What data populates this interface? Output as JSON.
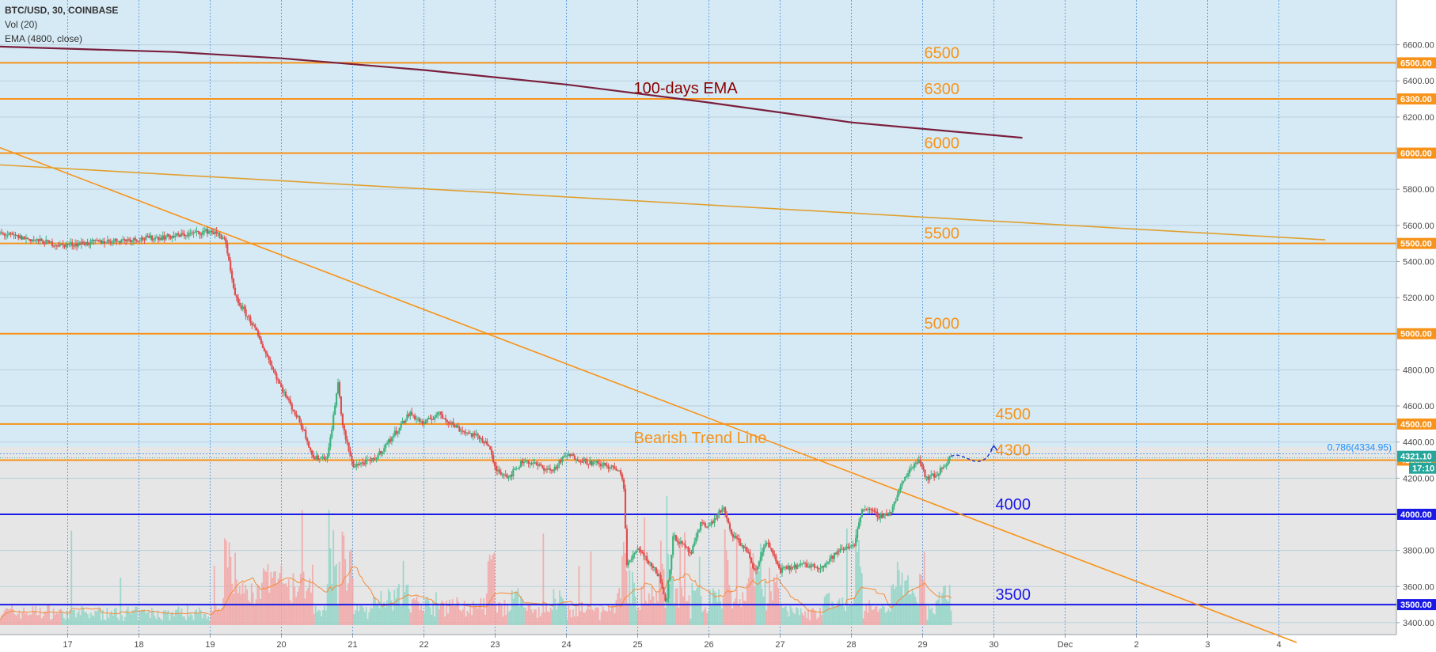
{
  "chart_data": {
    "type": "candlestick",
    "symbol_line": "BTC/USD, 30, COINBASE",
    "indicators": [
      "Vol (20)",
      "EMA (4800, close)"
    ],
    "x_ticks": [
      "17",
      "18",
      "19",
      "20",
      "21",
      "22",
      "23",
      "24",
      "25",
      "26",
      "27",
      "28",
      "29",
      "30",
      "Dec",
      "2",
      "3",
      "4"
    ],
    "y_ticks": [
      3400,
      3600,
      3800,
      4000,
      4200,
      4400,
      4600,
      4800,
      5000,
      5200,
      5400,
      5600,
      5800,
      6000,
      6200,
      6400,
      6600
    ],
    "y_tick_labels": [
      "3400.00",
      "3600.00",
      "3800.00",
      "4000.00",
      "4200.00",
      "4400.00",
      "4600.00",
      "4800.00",
      "5000.00",
      "5200.00",
      "5400.00",
      "5600.00",
      "5800.00",
      "6000.00",
      "6200.00",
      "6400.00",
      "6600.00"
    ],
    "ylim": [
      3290,
      6710
    ],
    "xlim": [
      16.05,
      35.65
    ],
    "levels": [
      {
        "value": 6500,
        "label": "6500",
        "tag": "6500.00",
        "color": "#f7931a",
        "label_day": 29.0
      },
      {
        "value": 6300,
        "label": "6300",
        "tag": "6300.00",
        "color": "#f7931a",
        "label_day": 29.0
      },
      {
        "value": 6000,
        "label": "6000",
        "tag": "6000.00",
        "color": "#f7931a",
        "label_day": 29.0
      },
      {
        "value": 5500,
        "label": "5500",
        "tag": "5500.00",
        "color": "#f7931a",
        "label_day": 29.0
      },
      {
        "value": 5000,
        "label": "5000",
        "tag": "5000.00",
        "color": "#f7931a",
        "label_day": 29.0
      },
      {
        "value": 4500,
        "label": "4500",
        "tag": "4500.00",
        "color": "#f7931a",
        "label_day": 30.0
      },
      {
        "value": 4300,
        "label": "4300",
        "tag": "4300.00",
        "color": "#f7931a",
        "label_day": 30.0
      },
      {
        "value": 4000,
        "label": "4000",
        "tag": "4000.00",
        "color": "#1a1ae6",
        "label_day": 30.0
      },
      {
        "value": 3500,
        "label": "3500",
        "tag": "3500.00",
        "color": "#1a1ae6",
        "label_day": 30.0
      }
    ],
    "last_price": {
      "value": 4321.1,
      "label": "4321.10",
      "countdown": "17:10",
      "color": "#26a69a"
    },
    "fib_line": {
      "value": 4334.95,
      "label": "0.786(4334.95)",
      "color": "#1e90ff"
    },
    "annotations": [
      {
        "text": "100-days EMA",
        "day": 26.0,
        "value": 6330,
        "color": "#8b0000"
      },
      {
        "text": "Bearish Trend Line",
        "day": 26.0,
        "value": 4395,
        "color": "#f7931a"
      }
    ],
    "trend_lines": [
      {
        "name": "bearish",
        "x": [
          16.05,
          34.25
        ],
        "y": [
          6030,
          3290
        ],
        "color": "#f7931a"
      },
      {
        "name": "long-term",
        "x": [
          16.05,
          34.65
        ],
        "y": [
          5935,
          5520
        ],
        "color": "#e0a030"
      }
    ],
    "ema_line": {
      "x": [
        16.05,
        18.5,
        20.0,
        22.0,
        24.0,
        26.0,
        28.0,
        30.4
      ],
      "y": [
        6590,
        6560,
        6525,
        6460,
        6380,
        6280,
        6170,
        6085
      ],
      "color": "#7a1f3d"
    },
    "price_anchors": {
      "x": [
        16.05,
        16.9,
        17.5,
        18.5,
        19.0,
        19.2,
        19.35,
        19.6,
        20.0,
        20.3,
        20.45,
        20.65,
        20.8,
        20.85,
        21.0,
        21.3,
        21.5,
        21.8,
        22.0,
        22.2,
        22.5,
        22.8,
        22.9,
        23.0,
        23.2,
        23.4,
        23.8,
        24.0,
        24.3,
        24.55,
        24.7,
        24.8,
        24.85,
        25.0,
        25.3,
        25.4,
        25.5,
        25.75,
        25.9,
        26.0,
        26.2,
        26.3,
        26.55,
        26.65,
        26.8,
        27.0,
        27.3,
        27.6,
        27.8,
        28.05,
        28.15,
        28.4,
        28.55,
        28.7,
        28.8,
        28.95,
        29.05,
        29.2,
        29.4
      ],
      "y": [
        5555,
        5490,
        5510,
        5540,
        5570,
        5530,
        5200,
        5050,
        4700,
        4480,
        4310,
        4320,
        4740,
        4500,
        4270,
        4300,
        4400,
        4560,
        4500,
        4560,
        4470,
        4420,
        4390,
        4250,
        4210,
        4300,
        4240,
        4330,
        4290,
        4270,
        4250,
        4200,
        3710,
        3820,
        3660,
        3510,
        3880,
        3780,
        3960,
        3930,
        4040,
        3900,
        3790,
        3670,
        3860,
        3690,
        3720,
        3710,
        3790,
        3840,
        4040,
        3990,
        4010,
        4160,
        4240,
        4310,
        4200,
        4220,
        4321
      ]
    },
    "volume": {
      "base_value": 3290,
      "count": 640,
      "ma_color": "#f58c3c"
    },
    "future_path": {
      "x": [
        29.4,
        29.6,
        29.8,
        30.0
      ],
      "y": [
        4321,
        4360,
        4200,
        4380
      ],
      "color": "#1a3cc8"
    }
  }
}
